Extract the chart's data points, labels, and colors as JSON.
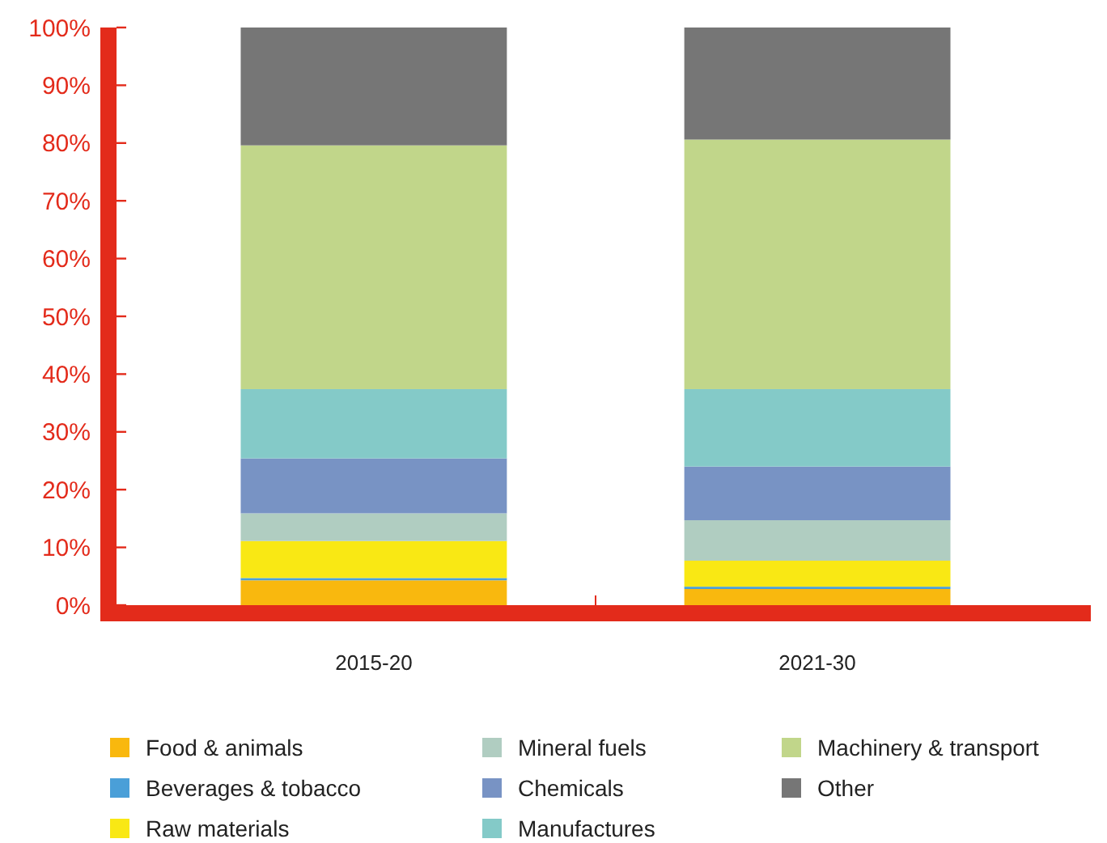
{
  "chart_data": {
    "type": "bar",
    "stacked": true,
    "categories": [
      "2015-20",
      "2021-30"
    ],
    "ylim": [
      0,
      100
    ],
    "yticks": [
      {
        "value": 0,
        "label": "0%"
      },
      {
        "value": 10,
        "label": "10%"
      },
      {
        "value": 20,
        "label": "20%"
      },
      {
        "value": 30,
        "label": "30%"
      },
      {
        "value": 40,
        "label": "40%"
      },
      {
        "value": 50,
        "label": "50%"
      },
      {
        "value": 60,
        "label": "60%"
      },
      {
        "value": 70,
        "label": "70%"
      },
      {
        "value": 80,
        "label": "80%"
      },
      {
        "value": 90,
        "label": "90%"
      },
      {
        "value": 100,
        "label": "100%"
      }
    ],
    "grid": false,
    "legend": "bottom",
    "series": [
      {
        "name": "Food & animals",
        "color": "#f9b80e",
        "values": [
          4.3,
          2.8
        ]
      },
      {
        "name": "Beverages & tobacco",
        "color": "#4a9fd8",
        "values": [
          0.4,
          0.4
        ]
      },
      {
        "name": "Raw materials",
        "color": "#f9e814",
        "values": [
          6.4,
          4.5
        ]
      },
      {
        "name": "Mineral fuels",
        "color": "#b0cdc1",
        "values": [
          4.8,
          7.0
        ]
      },
      {
        "name": "Chemicals",
        "color": "#7893c4",
        "values": [
          9.5,
          9.3
        ]
      },
      {
        "name": "Manufactures",
        "color": "#84cac8",
        "values": [
          12.0,
          13.4
        ]
      },
      {
        "name": "Machinery & transport",
        "color": "#c1d68a",
        "values": [
          42.2,
          43.2
        ]
      },
      {
        "name": "Other",
        "color": "#767676",
        "values": [
          20.4,
          19.4
        ]
      }
    ]
  }
}
